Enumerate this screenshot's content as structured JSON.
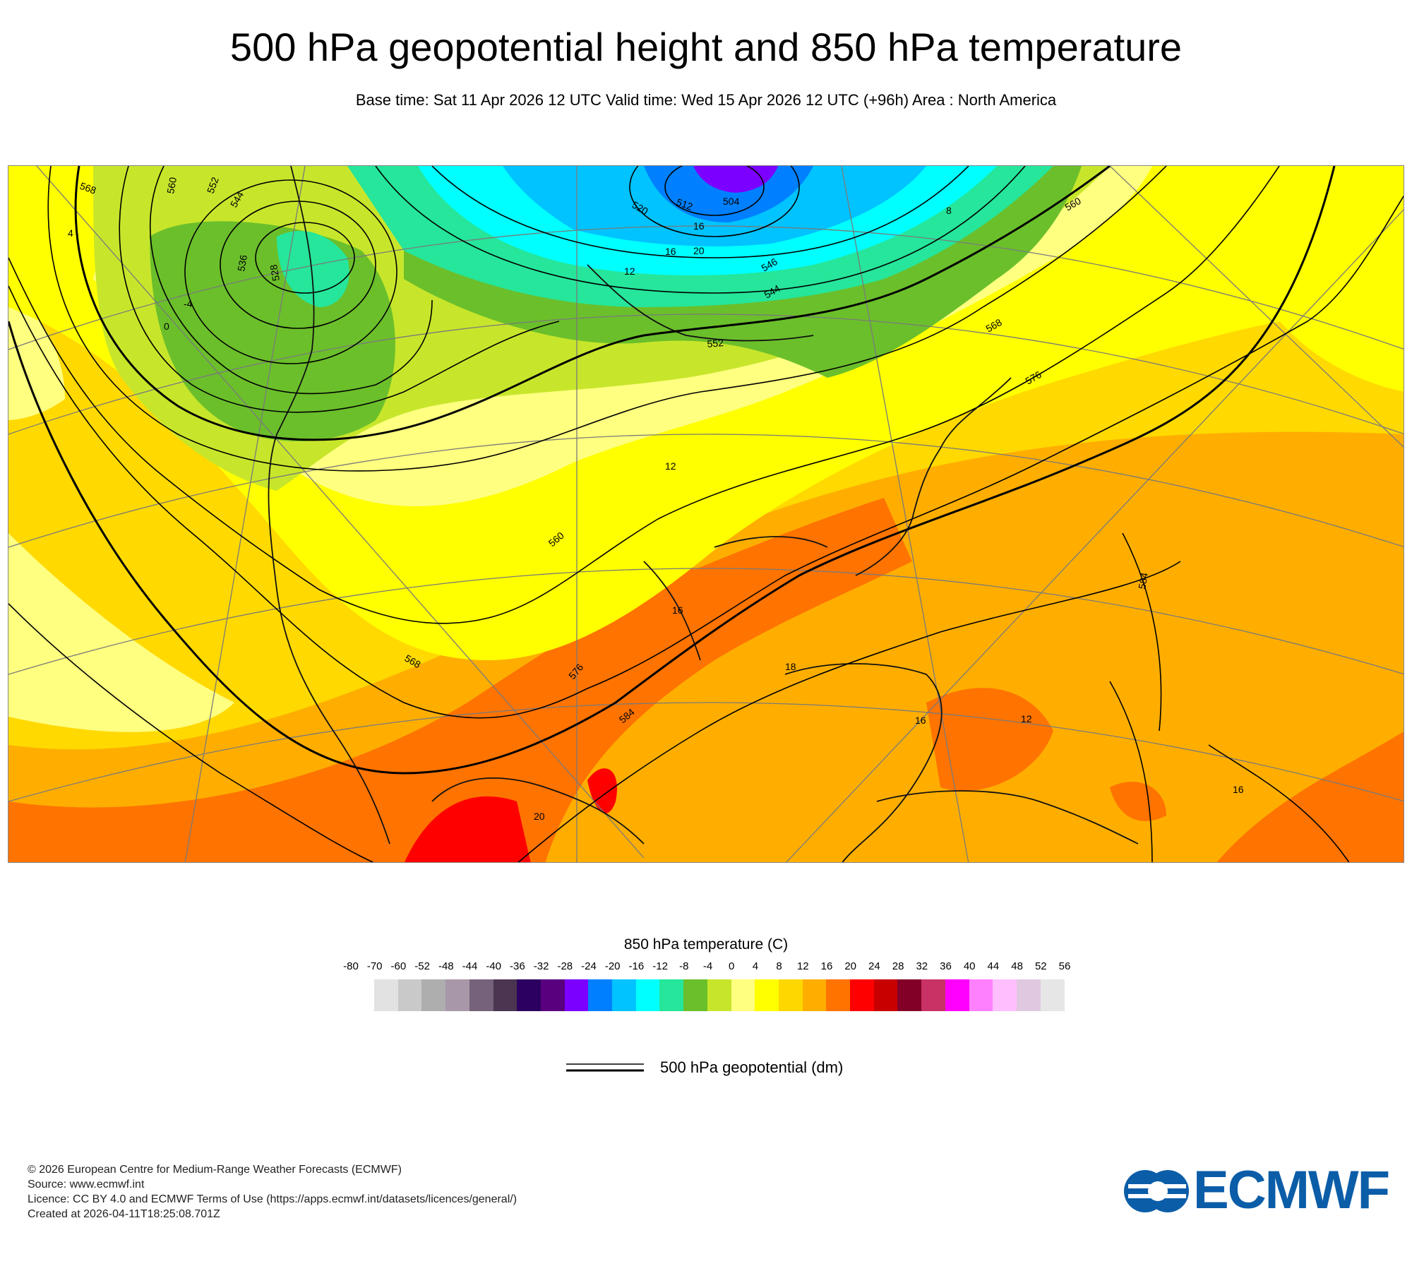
{
  "header": {
    "title": "500 hPa geopotential height and 850 hPa temperature",
    "subtitle": "Base time: Sat 11 Apr 2026 12 UTC Valid time: Wed 15 Apr 2026 12 UTC (+96h) Area : North America"
  },
  "map": {
    "area": "North America",
    "geopotential_labels": [
      "568",
      "560",
      "552",
      "544",
      "536",
      "528",
      "520",
      "512",
      "504",
      "546",
      "544",
      "552",
      "560",
      "568",
      "576",
      "584",
      "560",
      "568",
      "576",
      "584"
    ],
    "temperature_labels": [
      "4",
      "0",
      "-4",
      "8",
      "16",
      "20",
      "12",
      "16",
      "12",
      "16",
      "20",
      "12",
      "16",
      "16",
      "18"
    ]
  },
  "legend": {
    "temperature_title": "850 hPa temperature (C)",
    "ticks": [
      "-80",
      "-70",
      "-60",
      "-52",
      "-48",
      "-44",
      "-40",
      "-36",
      "-32",
      "-28",
      "-24",
      "-20",
      "-16",
      "-12",
      "-8",
      "-4",
      "0",
      "4",
      "8",
      "12",
      "16",
      "20",
      "24",
      "28",
      "32",
      "36",
      "40",
      "44",
      "48",
      "52",
      "56"
    ],
    "colors": [
      "#e2e2e2",
      "#c9c9c9",
      "#aeaeae",
      "#a897a8",
      "#76627a",
      "#4b3551",
      "#2c0060",
      "#59007f",
      "#7b00ff",
      "#0080ff",
      "#00c3ff",
      "#00ffff",
      "#25e69a",
      "#6bbf2b",
      "#c7e62b",
      "#ffff80",
      "#ffff00",
      "#ffd700",
      "#ffae00",
      "#ff7300",
      "#ff0000",
      "#c80000",
      "#820028",
      "#c83264",
      "#ff00ff",
      "#ff80ff",
      "#ffbfff",
      "#e0c8e0",
      "#e6e6e6"
    ],
    "line_label": "500 hPa geopotential (dm)"
  },
  "footer": {
    "lines": [
      "© 2026 European Centre for Medium-Range Weather Forecasts (ECMWF)",
      "Source: www.ecmwf.int",
      "Licence: CC BY 4.0 and ECMWF Terms of Use (https://apps.ecmwf.int/datasets/licences/general/)",
      "Created at 2026-04-11T18:25:08.701Z"
    ]
  },
  "logo": {
    "text": "ECMWF",
    "color": "#0b5da8"
  }
}
